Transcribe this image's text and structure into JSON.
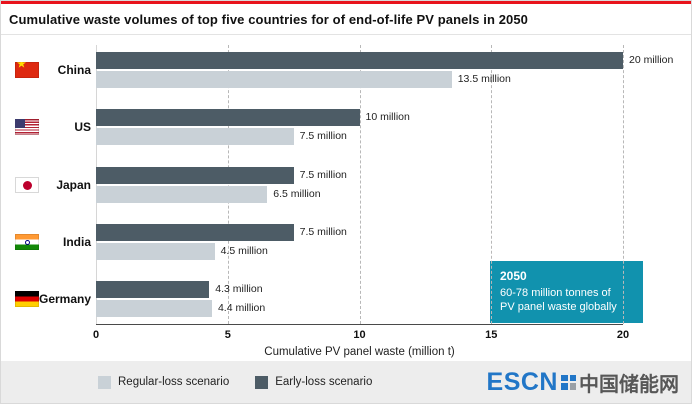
{
  "title": "Cumulative waste volumes of top five countries for of end-of-life PV panels in 2050",
  "chart_data": {
    "type": "bar",
    "orientation": "horizontal",
    "categories": [
      "China",
      "US",
      "Japan",
      "India",
      "Germany"
    ],
    "flags": [
      "cn",
      "us",
      "jp",
      "in",
      "de"
    ],
    "series": [
      {
        "name": "Early-loss scenario",
        "color": "#4d5c66",
        "values": [
          20,
          10,
          7.5,
          7.5,
          4.3
        ],
        "labels": [
          "20 million",
          "10 million",
          "7.5 million",
          "7.5 million",
          "4.3 million"
        ]
      },
      {
        "name": "Regular-loss scenario",
        "color": "#c9d1d7",
        "values": [
          13.5,
          7.5,
          6.5,
          4.5,
          4.4
        ],
        "labels": [
          "13.5 million",
          "7.5 million",
          "6.5 million",
          "4.5 million",
          "4.4 million"
        ]
      }
    ],
    "xlabel": "Cumulative PV panel waste (million t)",
    "xlim": [
      0,
      20
    ],
    "xticks": [
      "0",
      "5",
      "10",
      "15",
      "20"
    ],
    "grid": "dashed vertical gridlines at each tick",
    "legend_position": "bottom-left"
  },
  "legend": [
    {
      "label": "Regular-loss scenario",
      "color": "#c9d1d7"
    },
    {
      "label": "Early-loss scenario",
      "color": "#4d5c66"
    }
  ],
  "callout": {
    "year": "2050",
    "line1": "60-78 million tonnes of",
    "line2": "PV panel waste globally",
    "bg_color": "#1192ae"
  },
  "branding": {
    "logo_text": "ESCN",
    "logo_cn": "中国储能网",
    "logo_color": "#2176c7"
  },
  "accent_red": "#e8131c"
}
